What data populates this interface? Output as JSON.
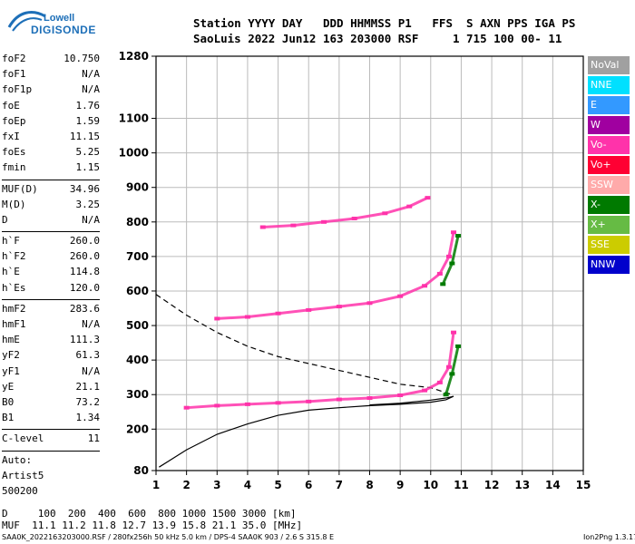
{
  "logo": {
    "line1": "Lowell",
    "line2": "DIGISONDE"
  },
  "header": {
    "line1": "Station YYYY DAY   DDD HHMMSS P1   FFS  S AXN PPS IGA PS",
    "line2": "SaoLuis 2022 Jun12 163 203000 RSF     1 715 100 00- 11"
  },
  "params": {
    "group1": [
      {
        "name": "foF2",
        "value": "10.750"
      },
      {
        "name": "foF1",
        "value": "N/A"
      },
      {
        "name": "foF1p",
        "value": "N/A"
      },
      {
        "name": "foE",
        "value": "1.76"
      },
      {
        "name": "foEp",
        "value": "1.59"
      },
      {
        "name": "fxI",
        "value": "11.15"
      },
      {
        "name": "foEs",
        "value": "5.25"
      },
      {
        "name": "fmin",
        "value": "1.15"
      }
    ],
    "group2": [
      {
        "name": "MUF(D)",
        "value": "34.96"
      },
      {
        "name": "M(D)",
        "value": "3.25"
      },
      {
        "name": "D",
        "value": "N/A"
      }
    ],
    "group3": [
      {
        "name": "h`F",
        "value": "260.0"
      },
      {
        "name": "h`F2",
        "value": "260.0"
      },
      {
        "name": "h`E",
        "value": "114.8"
      },
      {
        "name": "h`Es",
        "value": "120.0"
      }
    ],
    "group4": [
      {
        "name": "hmF2",
        "value": "283.6"
      },
      {
        "name": "hmF1",
        "value": "N/A"
      },
      {
        "name": "hmE",
        "value": "111.3"
      },
      {
        "name": "yF2",
        "value": "61.3"
      },
      {
        "name": "yF1",
        "value": "N/A"
      },
      {
        "name": "yE",
        "value": "21.1"
      },
      {
        "name": "B0",
        "value": "73.2"
      },
      {
        "name": "B1",
        "value": "1.34"
      }
    ],
    "group5": [
      {
        "name": "C-level",
        "value": "11"
      }
    ],
    "autoscaling": [
      "Auto:",
      "Artist5",
      "500200"
    ]
  },
  "legend": [
    {
      "label": "NoVal",
      "color": "#a0a0a0"
    },
    {
      "label": "NNE",
      "color": "#00e0ff"
    },
    {
      "label": "E",
      "color": "#3399ff"
    },
    {
      "label": "W",
      "color": "#a000a0"
    },
    {
      "label": "Vo-",
      "color": "#ff33aa"
    },
    {
      "label": "Vo+",
      "color": "#ff0033"
    },
    {
      "label": "SSW",
      "color": "#ffaaaa"
    },
    {
      "label": "X-",
      "color": "#007a00"
    },
    {
      "label": "X+",
      "color": "#66bb44"
    },
    {
      "label": "SSE",
      "color": "#cccc00"
    },
    {
      "label": "NNW",
      "color": "#0000cc"
    }
  ],
  "bottom": {
    "d_line": "D     100  200  400  600  800 1000 1500 3000 [km]",
    "muf_line": "MUF  11.1 11.2 11.8 12.7 13.9 15.8 21.1 35.0 [MHz]"
  },
  "footer": {
    "left": "SAA0K_2022163203000.RSF / 280fx256h 50 kHz 5.0 km / DPS-4 SAA0K 903 / 2.6 S 315.8 E",
    "right": "Ion2Png 1.3.17"
  },
  "chart_data": {
    "type": "scatter",
    "xlim": [
      1,
      15
    ],
    "ylim": [
      80,
      1280
    ],
    "x_ticks": [
      1,
      2,
      3,
      4,
      5,
      6,
      7,
      8,
      9,
      10,
      11,
      12,
      13,
      14,
      15
    ],
    "y_ticks": [
      80,
      200,
      300,
      400,
      500,
      600,
      700,
      800,
      900,
      1000,
      1100,
      1280
    ],
    "y_gridlines": [
      200,
      300,
      400,
      500,
      600,
      700,
      800,
      900,
      1000,
      1100
    ],
    "grid": true,
    "series": [
      {
        "name": "Vo-",
        "color": "#ff33aa",
        "x": [
          2.0,
          3.0,
          4.0,
          5.0,
          6.0,
          7.0,
          8.0,
          9.0,
          9.8,
          10.3,
          10.6,
          10.75
        ],
        "y": [
          262,
          268,
          272,
          276,
          280,
          286,
          290,
          298,
          312,
          335,
          380,
          480
        ]
      },
      {
        "name": "Vo-",
        "color": "#ff33aa",
        "x": [
          3.0,
          4.0,
          5.0,
          6.0,
          7.0,
          8.0,
          9.0,
          9.8,
          10.3,
          10.6,
          10.75
        ],
        "y": [
          520,
          525,
          535,
          545,
          555,
          565,
          585,
          615,
          650,
          700,
          770
        ]
      },
      {
        "name": "Vo-",
        "color": "#ff33aa",
        "x": [
          4.5,
          5.5,
          6.5,
          7.5,
          8.5,
          9.3,
          9.9
        ],
        "y": [
          785,
          790,
          800,
          810,
          825,
          845,
          870
        ]
      },
      {
        "name": "X-",
        "color": "#007a00",
        "x": [
          10.5,
          10.7,
          10.9
        ],
        "y": [
          300,
          360,
          440
        ]
      },
      {
        "name": "X-",
        "color": "#007a00",
        "x": [
          10.4,
          10.7,
          10.9
        ],
        "y": [
          620,
          680,
          760
        ]
      }
    ],
    "profile_solid": {
      "x": [
        1.1,
        2.0,
        3.0,
        4.0,
        5.0,
        6.0,
        7.0,
        8.0,
        9.0,
        10.0,
        10.5,
        10.75,
        10.5,
        10.0,
        9.0,
        8.0
      ],
      "y": [
        90,
        140,
        185,
        215,
        240,
        255,
        262,
        268,
        272,
        278,
        285,
        295,
        290,
        284,
        275,
        270
      ]
    },
    "profile_dashed": {
      "x": [
        1.0,
        2.0,
        3.0,
        4.0,
        5.0,
        6.0,
        7.0,
        8.0,
        9.0,
        10.0,
        10.7
      ],
      "y": [
        590,
        530,
        480,
        440,
        410,
        390,
        370,
        350,
        330,
        320,
        300
      ]
    }
  }
}
